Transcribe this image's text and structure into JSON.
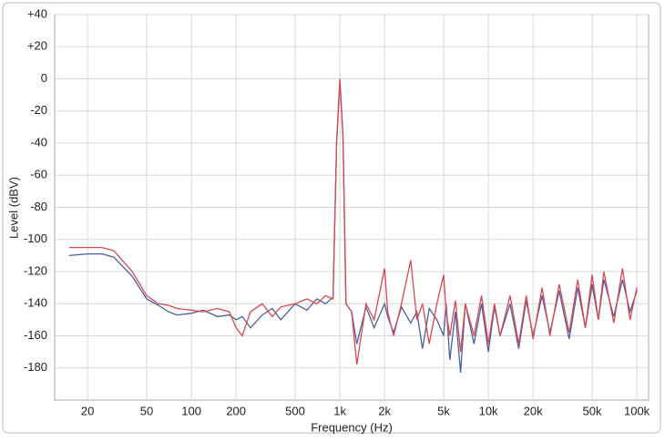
{
  "chart_data": {
    "type": "line",
    "x_label": "Frequency (Hz)",
    "y_label": "Level (dBV)",
    "xscale": "log",
    "grid": true,
    "xlim": [
      12,
      120000
    ],
    "ylim": [
      -200,
      40
    ],
    "xticks": [
      20,
      50,
      100,
      200,
      500,
      {
        "value": 1000,
        "label": "1k"
      },
      {
        "value": 2000,
        "label": "2k"
      },
      {
        "value": 5000,
        "label": "5k"
      },
      {
        "value": 10000,
        "label": "10k"
      },
      {
        "value": 20000,
        "label": "20k"
      },
      {
        "value": 50000,
        "label": "50k"
      },
      {
        "value": 100000,
        "label": "100k"
      }
    ],
    "yticks": [
      {
        "value": 40,
        "label": "+40"
      },
      {
        "value": 20,
        "label": "+20"
      },
      0,
      -20,
      -40,
      -60,
      -80,
      -100,
      -120,
      -140,
      -160,
      -180
    ],
    "x": [
      15,
      20,
      25,
      30,
      40,
      50,
      60,
      70,
      80,
      100,
      120,
      150,
      180,
      200,
      220,
      250,
      300,
      350,
      400,
      500,
      600,
      700,
      800,
      900,
      950,
      1000,
      1050,
      1100,
      1200,
      1300,
      1500,
      1700,
      2000,
      2100,
      2300,
      2600,
      3000,
      3300,
      3600,
      4000,
      4500,
      5000,
      5200,
      5500,
      6000,
      6500,
      7000,
      8000,
      9000,
      10000,
      11000,
      12000,
      14000,
      16000,
      18000,
      20000,
      23000,
      26000,
      30000,
      35000,
      40000,
      45000,
      50000,
      55000,
      60000,
      70000,
      80000,
      90000,
      100000
    ],
    "series": [
      {
        "color": "#4a5f9e",
        "values": [
          -110,
          -109,
          -109,
          -111,
          -123,
          -137,
          -141,
          -145,
          -147,
          -146,
          -144,
          -148,
          -147,
          -150,
          -148,
          -155,
          -147,
          -143,
          -150,
          -140,
          -144,
          -137,
          -140,
          -136,
          -40,
          -1,
          -36,
          -140,
          -145,
          -165,
          -142,
          -155,
          -140,
          -148,
          -158,
          -142,
          -152,
          -145,
          -168,
          -143,
          -150,
          -160,
          -140,
          -175,
          -145,
          -183,
          -140,
          -165,
          -140,
          -170,
          -142,
          -160,
          -140,
          -168,
          -138,
          -160,
          -135,
          -158,
          -132,
          -162,
          -130,
          -155,
          -128,
          -150,
          -125,
          -148,
          -125,
          -145,
          -132
        ]
      },
      {
        "color": "#d9484e",
        "values": [
          -105,
          -105,
          -105,
          -107,
          -120,
          -135,
          -140,
          -141,
          -143,
          -144,
          -145,
          -143,
          -145,
          -155,
          -160,
          -145,
          -140,
          -148,
          -142,
          -140,
          -137,
          -140,
          -135,
          -137,
          -40,
          0,
          -35,
          -140,
          -145,
          -178,
          -140,
          -150,
          -118,
          -145,
          -160,
          -140,
          -113,
          -150,
          -140,
          -165,
          -140,
          -122,
          -145,
          -160,
          -138,
          -170,
          -140,
          -160,
          -135,
          -165,
          -140,
          -160,
          -135,
          -165,
          -135,
          -162,
          -130,
          -160,
          -128,
          -158,
          -125,
          -155,
          -122,
          -150,
          -120,
          -152,
          -118,
          -150,
          -130
        ]
      }
    ]
  }
}
